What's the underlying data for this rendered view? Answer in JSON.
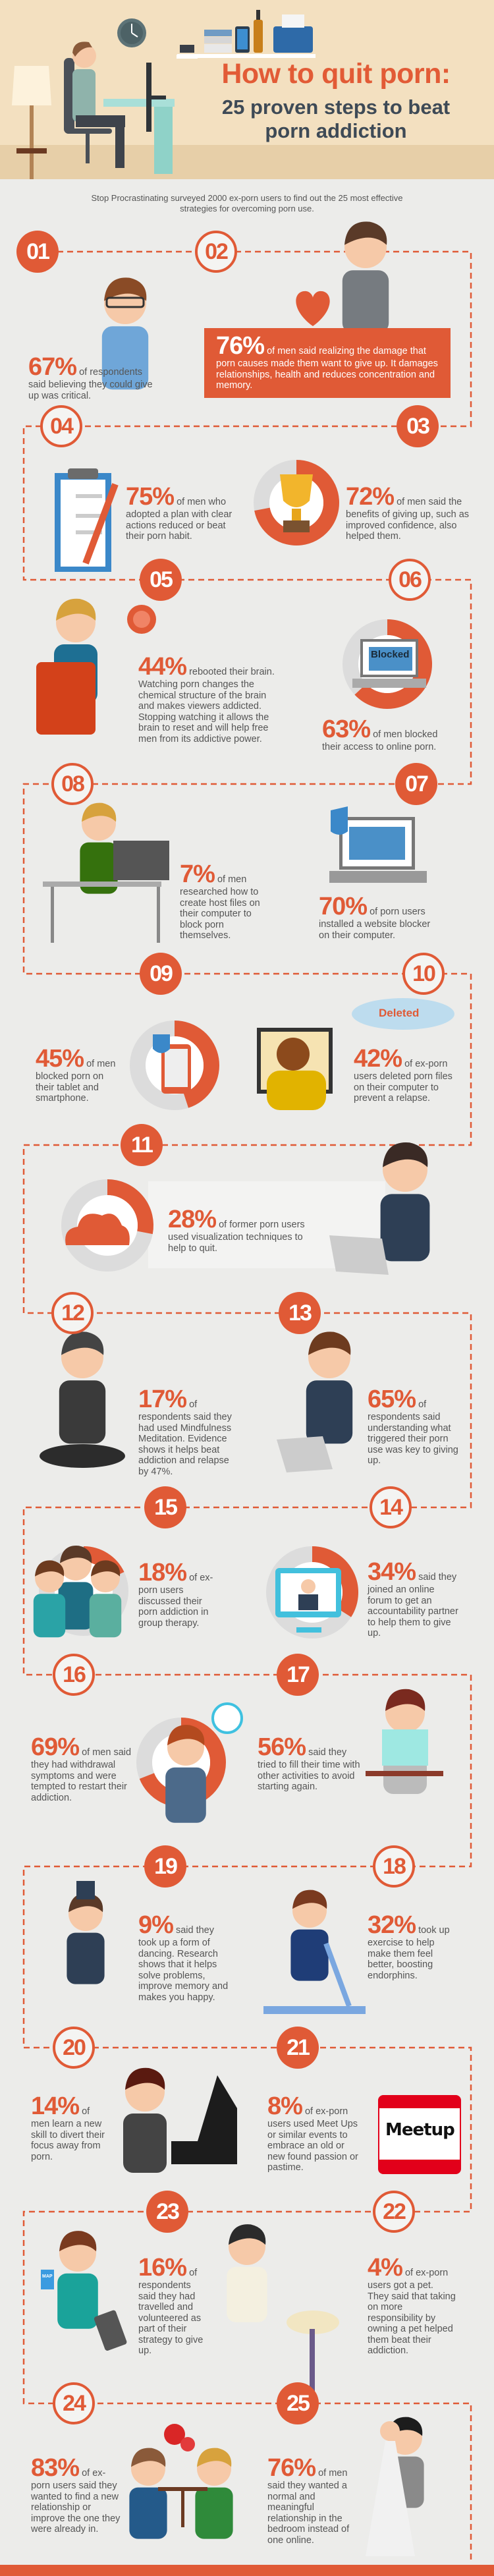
{
  "header": {
    "title": "How to quit porn:",
    "subtitle_line1": "25 proven steps to beat",
    "subtitle_line2": "porn addiction"
  },
  "intro": "Stop Procrastinating surveyed 2000 ex-porn users to find out the 25 most effective strategies for overcoming porn use.",
  "colors": {
    "accent": "#e05a36",
    "header_bg": "#f3e0c0",
    "title_dark": "#3e4a56",
    "ring_gray": "#dcdcdc"
  },
  "steps": [
    {
      "number": "01",
      "percent": "67%",
      "text": "of respondents said believing they could give up was critical.",
      "icon": "man-glasses-icon"
    },
    {
      "number": "02",
      "percent": "76%",
      "text": "of men said realizing the damage that porn causes made them want to give up. It damages relationships, health and reduces concentration and memory.",
      "icon": "broken-heart-icon"
    },
    {
      "number": "03",
      "percent": "72%",
      "text": "of men said the benefits of giving up, such as improved confidence, also helped them.",
      "icon": "trophy-icon",
      "ring": 72
    },
    {
      "number": "04",
      "percent": "75%",
      "text": "of men who adopted a plan with clear actions reduced or beat their porn habit.",
      "icon": "clipboard-icon"
    },
    {
      "number": "05",
      "percent": "44%",
      "text": "rebooted their brain. Watching porn changes the chemical structure of the brain and makes viewers addicted. Stopping watching it allows the brain to reset and will help free men from its addictive power.",
      "icon": "brain-icon"
    },
    {
      "number": "06",
      "percent": "63%",
      "text": "of men blocked their access to online porn.",
      "icon": "laptop-blocked-icon",
      "ring": 63,
      "label": "Blocked"
    },
    {
      "number": "07",
      "percent": "70%",
      "text": "of porn users installed a website blocker on their computer.",
      "icon": "laptop-shield-icon"
    },
    {
      "number": "08",
      "percent": "7%",
      "text": "of men researched how to create host files on their computer to block porn themselves.",
      "icon": "man-desk-icon"
    },
    {
      "number": "09",
      "percent": "45%",
      "text": "of men blocked porn on their tablet and smartphone.",
      "icon": "tablet-lock-icon",
      "ring": 45
    },
    {
      "number": "10",
      "percent": "42%",
      "text": "of ex-porn users deleted porn files on their computer to prevent a relapse.",
      "icon": "delete-icon",
      "label": "Deleted"
    },
    {
      "number": "11",
      "percent": "28%",
      "text": "of former porn users used visualization techniques to help to quit.",
      "icon": "cloud-icon",
      "ring": 28
    },
    {
      "number": "12",
      "percent": "17%",
      "text": "of respondents said they had used Mindfulness Meditation. Evidence shows it helps beat addiction and relapse by 47%.",
      "icon": "meditation-icon"
    },
    {
      "number": "13",
      "percent": "65%",
      "text": "of respondents said understanding what triggered their porn use was key to giving up.",
      "icon": "idea-man-icon"
    },
    {
      "number": "14",
      "percent": "34%",
      "text": "said they joined an online forum to get an accountability partner to help them to give up.",
      "icon": "video-call-icon",
      "ring": 34
    },
    {
      "number": "15",
      "percent": "18%",
      "text": "of ex-porn users discussed their porn addiction in group therapy.",
      "icon": "group-icon",
      "ring": 18
    },
    {
      "number": "16",
      "percent": "69%",
      "text": "of men said they had withdrawal symptoms and were tempted to restart their addiction.",
      "icon": "thinking-man-icon",
      "ring": 69
    },
    {
      "number": "17",
      "percent": "56%",
      "text": "said they tried to fill their time with other activities to avoid starting again.",
      "icon": "newspaper-icon"
    },
    {
      "number": "18",
      "percent": "32%",
      "text": "took up exercise to help make them feel better, boosting endorphins.",
      "icon": "treadmill-icon"
    },
    {
      "number": "19",
      "percent": "9%",
      "text": "said they took up a form of dancing. Research shows that it helps solve problems, improve memory and makes you happy.",
      "icon": "dancer-icon"
    },
    {
      "number": "20",
      "percent": "14%",
      "text": "of men learn a new skill to divert their focus away from porn.",
      "icon": "piano-icon"
    },
    {
      "number": "21",
      "percent": "8%",
      "text": "of ex-porn users used Meet Ups or similar events to embrace an old or new found passion or pastime.",
      "icon": "meetup-icon",
      "label": "Meetup"
    },
    {
      "number": "22",
      "percent": "4%",
      "text": "of ex-porn users got a pet. They said that taking on more responsibility by owning a pet helped them beat their addiction.",
      "icon": "dog-icon"
    },
    {
      "number": "23",
      "percent": "16%",
      "text": "of respondents said they had travelled and volunteered as part of their strategy to give up.",
      "icon": "traveller-icon",
      "label": "MAP"
    },
    {
      "number": "24",
      "percent": "83%",
      "text": "of ex-porn users said they wanted to find a new relationship or improve the one they were already in.",
      "icon": "dinner-date-icon"
    },
    {
      "number": "25",
      "percent": "76%",
      "text": "of men said they wanted a normal and meaningful relationship in the bedroom instead of one online.",
      "icon": "wedding-icon"
    }
  ]
}
